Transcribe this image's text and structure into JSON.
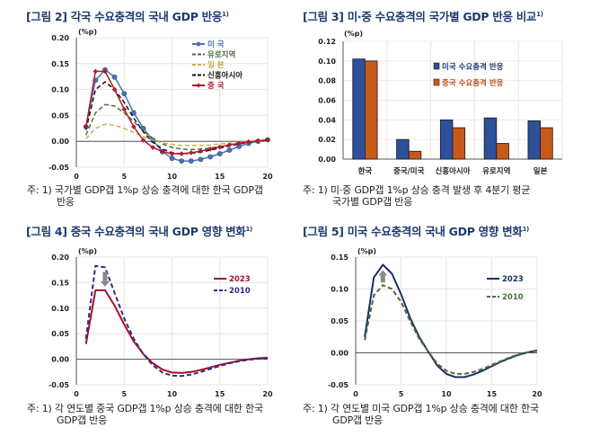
{
  "panels": [
    {
      "id": "fig2",
      "title": "[그림 2] 각국 수요충격의 국내 GDP 반응",
      "title_sup": "1)",
      "note_line1": "주: 1) 국가별 GDP갭 1%p 상승 충격에 대한 한국 GDP갭",
      "note_line2": "반응"
    },
    {
      "id": "fig3",
      "title": "[그림 3] 미·중 수요충격의 국가별 GDP 반응 비교",
      "title_sup": "1)",
      "note_line1": "주: 1) 미·중 GDP갭 1%p 상승 충격 발생 후 4분기 평균",
      "note_line2": "국가별 GDP갭 반응"
    },
    {
      "id": "fig4",
      "title": "[그림 4] 중국 수요충격의 국내 GDP 영향 변화",
      "title_sup": "1)",
      "note_line1": "주: 1) 각 연도별 중국 GDP갭 1%p 상승 충격에 대한 한국",
      "note_line2": "GDP갭 반응"
    },
    {
      "id": "fig5",
      "title": "[그림 5] 미국 수요충격의 국내 GDP 영향 변화",
      "title_sup": "1)",
      "note_line1": "주: 1) 각 연도별 미국 GDP갭 1%p 상승 충격에 대한 한국",
      "note_line2": "GDP갭 반응"
    }
  ],
  "chart_data": [
    {
      "type": "line",
      "title": "[그림 2] 각국 수요충격의 국내 GDP 반응",
      "ylabel": "(%p)",
      "xlabel": "",
      "xlim": [
        0,
        20
      ],
      "ylim": [
        -0.05,
        0.2
      ],
      "xticks": [
        "0",
        "5",
        "10",
        "15",
        "20"
      ],
      "yticks": [
        "0.20",
        "0.15",
        "0.10",
        "0.05",
        "0.00",
        "-0.05"
      ],
      "grid": true,
      "legend": "top-right",
      "x": [
        1,
        2,
        3,
        4,
        5,
        6,
        7,
        8,
        9,
        10,
        11,
        12,
        13,
        14,
        15,
        16,
        17,
        18,
        19,
        20
      ],
      "series": [
        {
          "name": "미    국",
          "color": "#4a74b4",
          "style": "solid-marker-circle",
          "values": [
            0.028,
            0.118,
            0.138,
            0.124,
            0.092,
            0.055,
            0.025,
            0.002,
            -0.02,
            -0.033,
            -0.038,
            -0.038,
            -0.035,
            -0.03,
            -0.024,
            -0.017,
            -0.01,
            -0.004,
            0.0,
            0.003
          ]
        },
        {
          "name": "유로지역",
          "color": "#4e6b3c",
          "style": "dashed",
          "values": [
            0.012,
            0.055,
            0.071,
            0.068,
            0.055,
            0.038,
            0.02,
            0.006,
            -0.005,
            -0.012,
            -0.015,
            -0.016,
            -0.015,
            -0.013,
            -0.01,
            -0.007,
            -0.004,
            -0.001,
            0.001,
            0.002
          ]
        },
        {
          "name": "일    본",
          "color": "#c9b24a",
          "style": "dashed",
          "values": [
            0.005,
            0.025,
            0.033,
            0.031,
            0.025,
            0.017,
            0.009,
            0.002,
            -0.003,
            -0.006,
            -0.008,
            -0.008,
            -0.008,
            -0.007,
            -0.005,
            -0.004,
            -0.002,
            -0.001,
            0.0,
            0.001
          ]
        },
        {
          "name": "신흥아시아",
          "color": "#111111",
          "style": "dashed",
          "values": [
            0.022,
            0.1,
            0.115,
            0.1,
            0.075,
            0.045,
            0.018,
            -0.002,
            -0.015,
            -0.022,
            -0.024,
            -0.023,
            -0.021,
            -0.017,
            -0.013,
            -0.009,
            -0.005,
            -0.002,
            0.001,
            0.002
          ]
        },
        {
          "name": "중    국",
          "color": "#b01c2e",
          "style": "solid-marker-diamond",
          "values": [
            0.028,
            0.135,
            0.135,
            0.1,
            0.062,
            0.028,
            0.002,
            -0.012,
            -0.02,
            -0.024,
            -0.024,
            -0.022,
            -0.019,
            -0.015,
            -0.011,
            -0.007,
            -0.004,
            -0.001,
            0.001,
            0.003
          ]
        }
      ]
    },
    {
      "type": "bar",
      "title": "[그림 3] 미·중 수요충격의 국가별 GDP 반응 비교",
      "ylabel": "(%p)",
      "ylim": [
        0,
        0.12
      ],
      "yticks": [
        "0.12",
        "0.10",
        "0.08",
        "0.06",
        "0.04",
        "0.02",
        "0.00"
      ],
      "grid": true,
      "legend": "top-right",
      "categories": [
        "한국",
        "중국/미국",
        "신흥아시아",
        "유로지역",
        "일본"
      ],
      "series": [
        {
          "name": "미국 수요충격 반응",
          "color": "#2e4f9a",
          "values": [
            0.102,
            0.02,
            0.04,
            0.042,
            0.039
          ]
        },
        {
          "name": "중국 수요충격 반응",
          "color": "#c55a1b",
          "values": [
            0.1,
            0.008,
            0.032,
            0.016,
            0.032
          ]
        }
      ]
    },
    {
      "type": "line",
      "title": "[그림 4] 중국 수요충격의 국내 GDP 영향 변화",
      "ylabel": "(%p)",
      "xlim": [
        0,
        20
      ],
      "ylim": [
        -0.05,
        0.2
      ],
      "xticks": [
        "0",
        "5",
        "10",
        "15",
        "20"
      ],
      "yticks": [
        "0.20",
        "0.15",
        "0.10",
        "0.05",
        "0.00",
        "-0.05"
      ],
      "grid": true,
      "legend": "right",
      "annotation": "down-arrow",
      "x": [
        1,
        2,
        3,
        4,
        5,
        6,
        7,
        8,
        9,
        10,
        11,
        12,
        13,
        14,
        15,
        16,
        17,
        18,
        19,
        20
      ],
      "series": [
        {
          "name": "2023",
          "color": "#a3122a",
          "style": "solid",
          "values": [
            0.03,
            0.135,
            0.135,
            0.105,
            0.068,
            0.035,
            0.01,
            -0.008,
            -0.02,
            -0.026,
            -0.027,
            -0.025,
            -0.021,
            -0.016,
            -0.011,
            -0.007,
            -0.003,
            0.0,
            0.002,
            0.003
          ]
        },
        {
          "name": "2010",
          "color": "#3a2a7a",
          "style": "dashed",
          "values": [
            0.04,
            0.183,
            0.18,
            0.13,
            0.08,
            0.04,
            0.01,
            -0.012,
            -0.026,
            -0.032,
            -0.033,
            -0.03,
            -0.025,
            -0.019,
            -0.013,
            -0.008,
            -0.004,
            -0.001,
            0.001,
            0.002
          ]
        }
      ]
    },
    {
      "type": "line",
      "title": "[그림 5] 미국 수요충격의 국내 GDP 영향 변화",
      "ylabel": "(%p)",
      "xlim": [
        0,
        20
      ],
      "ylim": [
        -0.05,
        0.15
      ],
      "xticks": [
        "0",
        "5",
        "10",
        "15",
        "20"
      ],
      "yticks": [
        "0.15",
        "0.10",
        "0.05",
        "0.00",
        "-0.05"
      ],
      "grid": true,
      "legend": "right",
      "annotation": "up-arrow",
      "x": [
        1,
        2,
        3,
        4,
        5,
        6,
        7,
        8,
        9,
        10,
        11,
        12,
        13,
        14,
        15,
        16,
        17,
        18,
        19,
        20
      ],
      "series": [
        {
          "name": "2023",
          "color": "#1b2f66",
          "style": "solid",
          "values": [
            0.025,
            0.118,
            0.138,
            0.124,
            0.092,
            0.055,
            0.025,
            0.002,
            -0.02,
            -0.033,
            -0.038,
            -0.038,
            -0.034,
            -0.028,
            -0.021,
            -0.014,
            -0.008,
            -0.003,
            0.001,
            0.004
          ]
        },
        {
          "name": "2010",
          "color": "#4e6b3c",
          "style": "dashed",
          "values": [
            0.02,
            0.09,
            0.106,
            0.1,
            0.08,
            0.05,
            0.022,
            0.002,
            -0.017,
            -0.028,
            -0.033,
            -0.033,
            -0.03,
            -0.025,
            -0.019,
            -0.013,
            -0.007,
            -0.002,
            0.001,
            0.003
          ]
        }
      ]
    }
  ]
}
